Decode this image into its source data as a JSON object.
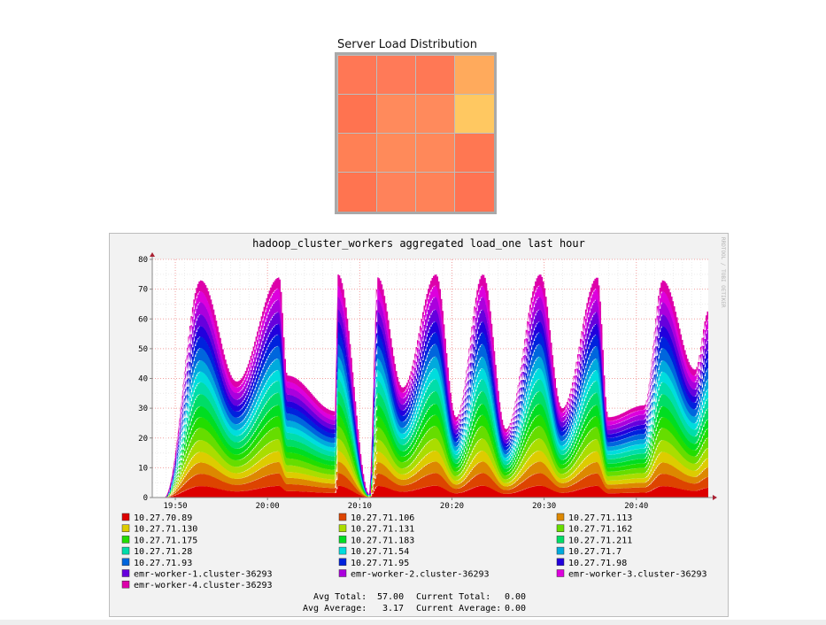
{
  "heatmap": {
    "title": "Server Load Distribution",
    "rows": 4,
    "cols": 4,
    "cell_colors": [
      [
        "#ff7755",
        "#ff7a58",
        "#ff7855",
        "#ffaa5c"
      ],
      [
        "#ff7350",
        "#ff8a5c",
        "#ff8a5c",
        "#ffc861"
      ],
      [
        "#ff8055",
        "#ff8a5a",
        "#ff885a",
        "#ff7752"
      ],
      [
        "#ff7450",
        "#ff825a",
        "#ff8258",
        "#ff7352"
      ]
    ]
  },
  "chart_data": {
    "type": "area",
    "stacked": true,
    "title": "hadoop_cluster_workers aggregated load_one last hour",
    "side_label": "RRDTOOL / TOBI OETIKER",
    "ylim": [
      0,
      80
    ],
    "y_ticks": [
      "0",
      "10",
      "20",
      "30",
      "40",
      "50",
      "60",
      "70",
      "80"
    ],
    "x_ticks": [
      "19:50",
      "20:00",
      "20:10",
      "20:20",
      "20:30",
      "20:40"
    ],
    "x_tick_minutes": [
      0,
      10,
      20,
      30,
      40,
      50
    ],
    "x_range_minutes": [
      -2.5,
      57.8
    ],
    "peaks": [
      {
        "center": 2.7,
        "height": 73
      },
      {
        "center": 11.2,
        "height": 74
      },
      {
        "center": 17.6,
        "height": 75
      },
      {
        "center": 21.9,
        "height": 74
      },
      {
        "center": 28.2,
        "height": 75
      },
      {
        "center": 33.3,
        "height": 75
      },
      {
        "center": 39.5,
        "height": 75
      },
      {
        "center": 45.7,
        "height": 74
      },
      {
        "center": 52.8,
        "height": 73
      }
    ],
    "troughs": [
      {
        "at": 6.6,
        "value": 39
      },
      {
        "at": 12.1,
        "value": 41
      },
      {
        "at": 17.3,
        "value": 29
      },
      {
        "at": 21.0,
        "value": 1
      },
      {
        "at": 24.6,
        "value": 37
      },
      {
        "at": 30.4,
        "value": 27
      },
      {
        "at": 35.8,
        "value": 23
      },
      {
        "at": 41.9,
        "value": 30
      },
      {
        "at": 46.9,
        "value": 27
      },
      {
        "at": 50.8,
        "value": 31
      },
      {
        "at": 56.3,
        "value": 43
      }
    ],
    "end_value": 63,
    "series": [
      {
        "name": "10.27.70.89",
        "color": "#dd0000"
      },
      {
        "name": "10.27.71.106",
        "color": "#dd4400"
      },
      {
        "name": "10.27.71.113",
        "color": "#dd8800"
      },
      {
        "name": "10.27.71.130",
        "color": "#ddcc00"
      },
      {
        "name": "10.27.71.131",
        "color": "#aadd00"
      },
      {
        "name": "10.27.71.162",
        "color": "#66dd00"
      },
      {
        "name": "10.27.71.175",
        "color": "#22dd00"
      },
      {
        "name": "10.27.71.183",
        "color": "#00dd22"
      },
      {
        "name": "10.27.71.211",
        "color": "#00dd66"
      },
      {
        "name": "10.27.71.28",
        "color": "#00ddaa"
      },
      {
        "name": "10.27.71.54",
        "color": "#00dddd"
      },
      {
        "name": "10.27.71.7",
        "color": "#00aadd"
      },
      {
        "name": "10.27.71.93",
        "color": "#0066dd"
      },
      {
        "name": "10.27.71.95",
        "color": "#0022dd"
      },
      {
        "name": "10.27.71.98",
        "color": "#2200dd"
      },
      {
        "name": "emr-worker-1.cluster-36293",
        "color": "#6600dd"
      },
      {
        "name": "emr-worker-2.cluster-36293",
        "color": "#aa00dd"
      },
      {
        "name": "emr-worker-3.cluster-36293",
        "color": "#dd00dd"
      },
      {
        "name": "emr-worker-4.cluster-36293",
        "color": "#dd00aa"
      }
    ],
    "stats": {
      "avg_total_label": "Avg Total:",
      "avg_total": "57.00",
      "current_total_label": "Current Total:",
      "current_total": "0.00",
      "avg_average_label": "Avg Average:",
      "avg_average": "3.17",
      "current_average_label": "Current Average:",
      "current_average": "0.00"
    }
  }
}
